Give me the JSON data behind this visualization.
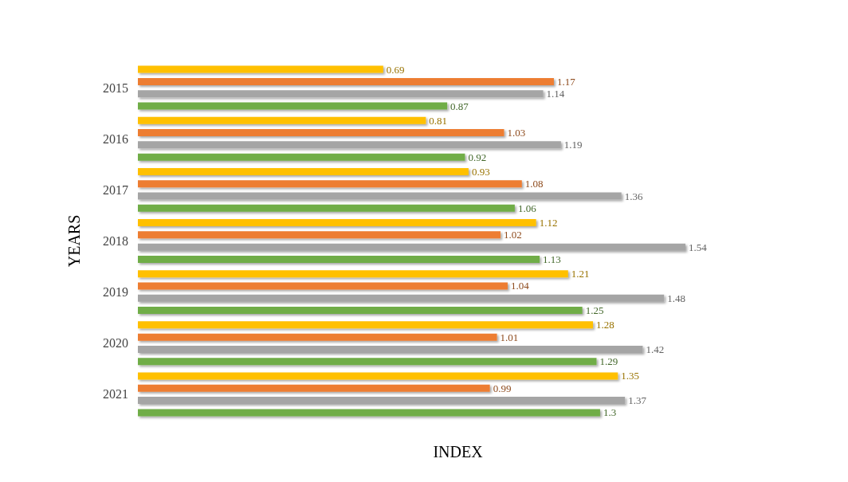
{
  "chart_data": {
    "type": "bar",
    "orientation": "horizontal",
    "xlabel": "INDEX",
    "ylabel": "YEARS",
    "categories": [
      "2015",
      "2016",
      "2017",
      "2018",
      "2019",
      "2020",
      "2021"
    ],
    "series": [
      {
        "color": "#ffc000",
        "values": [
          0.69,
          0.81,
          0.93,
          1.12,
          1.21,
          1.28,
          1.35
        ]
      },
      {
        "color": "#ed7d31",
        "values": [
          1.17,
          1.03,
          1.08,
          1.02,
          1.04,
          1.01,
          0.99
        ]
      },
      {
        "color": "#a5a5a5",
        "values": [
          1.14,
          1.19,
          1.36,
          1.54,
          1.48,
          1.42,
          1.37
        ]
      },
      {
        "color": "#70ad47",
        "values": [
          0.87,
          0.92,
          1.06,
          1.13,
          1.25,
          1.29,
          1.3
        ]
      }
    ],
    "tick_labels": "y",
    "data_labels": true,
    "grid": false
  }
}
